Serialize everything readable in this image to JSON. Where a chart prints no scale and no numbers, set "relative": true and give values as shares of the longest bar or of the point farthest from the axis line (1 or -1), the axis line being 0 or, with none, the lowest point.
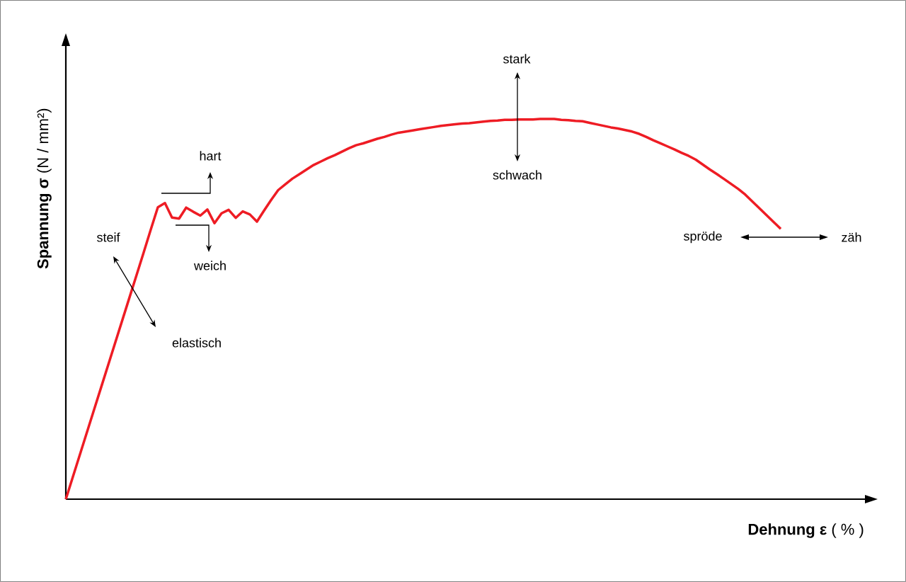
{
  "chart_data": {
    "type": "line",
    "relative": true,
    "xlabel": "**Dehnung  ε** ( % )",
    "ylabel": "**Spannung  σ** (N / mm²)",
    "categories": [
      null,
      null,
      null,
      null,
      null,
      null,
      null,
      null,
      null,
      null,
      null,
      null,
      null,
      null,
      null,
      null,
      null,
      null,
      null,
      null,
      null,
      null,
      null,
      null,
      null,
      null,
      null,
      null,
      null,
      null,
      null,
      null,
      null,
      null,
      null,
      null,
      null,
      null,
      null,
      null,
      null,
      null,
      null,
      null,
      null,
      null,
      null,
      null,
      null,
      null,
      null,
      null,
      null,
      null,
      null,
      null,
      null,
      null,
      null,
      null,
      null,
      null,
      null,
      null,
      null,
      null,
      null,
      null,
      null,
      null,
      null,
      null,
      null,
      null,
      null,
      null,
      null,
      null,
      null,
      null,
      null,
      null,
      null,
      null,
      null,
      null,
      null,
      null,
      null,
      null,
      null,
      null,
      null,
      null,
      null,
      null,
      null,
      null,
      null,
      null,
      null,
      null
    ],
    "series": [
      {
        "color": "#ee1c24",
        "values": [
          0,
          0.059,
          0.118,
          0.177,
          0.236,
          0.295,
          0.354,
          0.413,
          0.472,
          0.531,
          0.59,
          0.649,
          0.709,
          0.768,
          0.779,
          0.741,
          0.738,
          0.767,
          0.756,
          0.746,
          0.762,
          0.726,
          0.752,
          0.761,
          0.74,
          0.757,
          0.749,
          0.73,
          0.759,
          0.787,
          0.813,
          0.828,
          0.843,
          0.855,
          0.867,
          0.879,
          0.888,
          0.897,
          0.905,
          0.914,
          0.923,
          0.931,
          0.936,
          0.942,
          0.948,
          0.953,
          0.959,
          0.964,
          0.967,
          0.97,
          0.973,
          0.976,
          0.979,
          0.982,
          0.984,
          0.986,
          0.988,
          0.989,
          0.991,
          0.993,
          0.995,
          0.996,
          0.998,
          0.998,
          0.999,
          0.999,
          0.999,
          1.0,
          1.0,
          1.0,
          0.998,
          0.997,
          0.995,
          0.994,
          0.99,
          0.986,
          0.982,
          0.978,
          0.975,
          0.971,
          0.967,
          0.961,
          0.953,
          0.944,
          0.936,
          0.928,
          0.92,
          0.911,
          0.903,
          0.893,
          0.88,
          0.867,
          0.855,
          0.842,
          0.829,
          0.816,
          0.801,
          0.783,
          0.765,
          0.747,
          0.729,
          0.711
        ]
      }
    ],
    "annotations": [
      "steif",
      "elastisch",
      "hart",
      "weich",
      "stark",
      "schwach",
      "spröde",
      "zäh"
    ]
  }
}
